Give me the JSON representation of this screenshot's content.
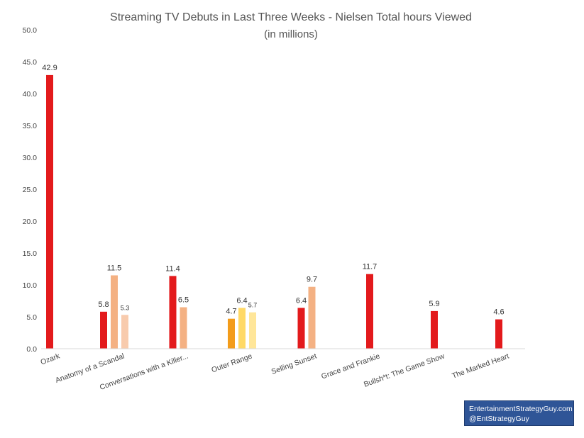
{
  "chart_data": {
    "type": "bar",
    "title": "Streaming TV Debuts in Last Three Weeks - Nielsen Total hours Viewed",
    "subtitle": "(in millions)",
    "xlabel": "",
    "ylabel": "",
    "ylim": [
      0,
      50
    ],
    "yticks": [
      "0.0",
      "5.0",
      "10.0",
      "15.0",
      "20.0",
      "25.0",
      "30.0",
      "35.0",
      "40.0",
      "45.0",
      "50.0"
    ],
    "grid": false,
    "categories": [
      "Ozark",
      "Anatomy of a Scandal",
      "Conversations with a Killer...",
      "Outer Range",
      "Selling Sunset",
      "Grace and Frankie",
      "Bullsh*t: The Game Show",
      "The Marked Heart"
    ],
    "groups": [
      {
        "bars": [
          {
            "value": 42.9,
            "label": "42.9",
            "color": "#e31a1c"
          }
        ]
      },
      {
        "bars": [
          {
            "value": 5.8,
            "label": "5.8",
            "color": "#e31a1c"
          },
          {
            "value": 11.5,
            "label": "11.5",
            "color": "#f4b183"
          },
          {
            "value": 5.3,
            "label": "5.3",
            "color": "#f8cbad"
          }
        ]
      },
      {
        "bars": [
          {
            "value": 11.4,
            "label": "11.4",
            "color": "#e31a1c"
          },
          {
            "value": 6.5,
            "label": "6.5",
            "color": "#f4b183"
          }
        ]
      },
      {
        "bars": [
          {
            "value": 4.7,
            "label": "4.7",
            "color": "#f39c1a"
          },
          {
            "value": 6.4,
            "label": "6.4",
            "color": "#ffd966"
          },
          {
            "value": 5.7,
            "label": "5.7",
            "color": "#ffe699"
          }
        ]
      },
      {
        "bars": [
          {
            "value": 6.4,
            "label": "6.4",
            "color": "#e31a1c"
          },
          {
            "value": 9.7,
            "label": "9.7",
            "color": "#f4b183"
          }
        ]
      },
      {
        "bars": [
          {
            "value": 11.7,
            "label": "11.7",
            "color": "#e31a1c"
          }
        ]
      },
      {
        "bars": [
          {
            "value": 5.9,
            "label": "5.9",
            "color": "#e31a1c"
          }
        ]
      },
      {
        "bars": [
          {
            "value": 4.6,
            "label": "4.6",
            "color": "#e31a1c"
          }
        ]
      }
    ]
  },
  "credit": {
    "line1": "EntertainmentStrategyGuy.com",
    "line2": "@EntStrategyGuy"
  }
}
